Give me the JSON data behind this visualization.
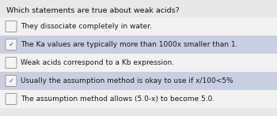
{
  "title": "Which statements are true about weak acids?",
  "items": [
    {
      "text": "They dissociate completely in water.",
      "checked": false,
      "highlighted": false
    },
    {
      "text": "The Ka values are typically more than 1000x smaller than 1.",
      "checked": true,
      "highlighted": true
    },
    {
      "text": "Weak acids correspond to a Kb expression.",
      "checked": false,
      "highlighted": false
    },
    {
      "text": "Usually the assumption method is okay to use if x/100<5%",
      "checked": true,
      "highlighted": true
    },
    {
      "text": "The assumption method allows (5.0-x) to become 5.0.",
      "checked": false,
      "highlighted": false
    }
  ],
  "bg_color": "#e8e8e8",
  "row_bg_color": "#f2f2f2",
  "highlight_color": "#c8cfe0",
  "title_fontsize": 6.8,
  "item_fontsize": 6.5,
  "check_color": "#444444",
  "text_color": "#1a1a1a",
  "title_color": "#111111",
  "checkbox_edge_color": "#999999",
  "checkbox_face_color": "#f5f5f5"
}
